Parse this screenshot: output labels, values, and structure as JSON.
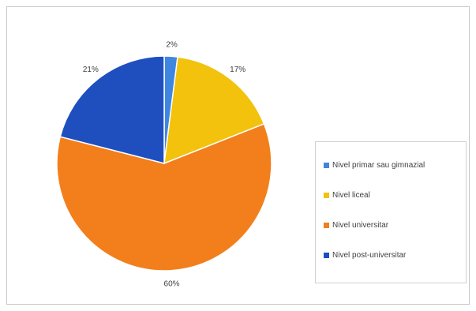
{
  "chart_data": {
    "type": "pie",
    "title": "",
    "categories": [
      "Nivel primar sau gimnazial",
      "Nivel liceal",
      "Nivel universitar",
      "Nivel post-universitar"
    ],
    "values": [
      2,
      17,
      60,
      21
    ],
    "labels": [
      "2%",
      "17%",
      "60%",
      "21%"
    ],
    "colors": [
      "#3f86e0",
      "#f2c20c",
      "#f27f1b",
      "#1f4fbf"
    ],
    "legend_position": "right"
  }
}
